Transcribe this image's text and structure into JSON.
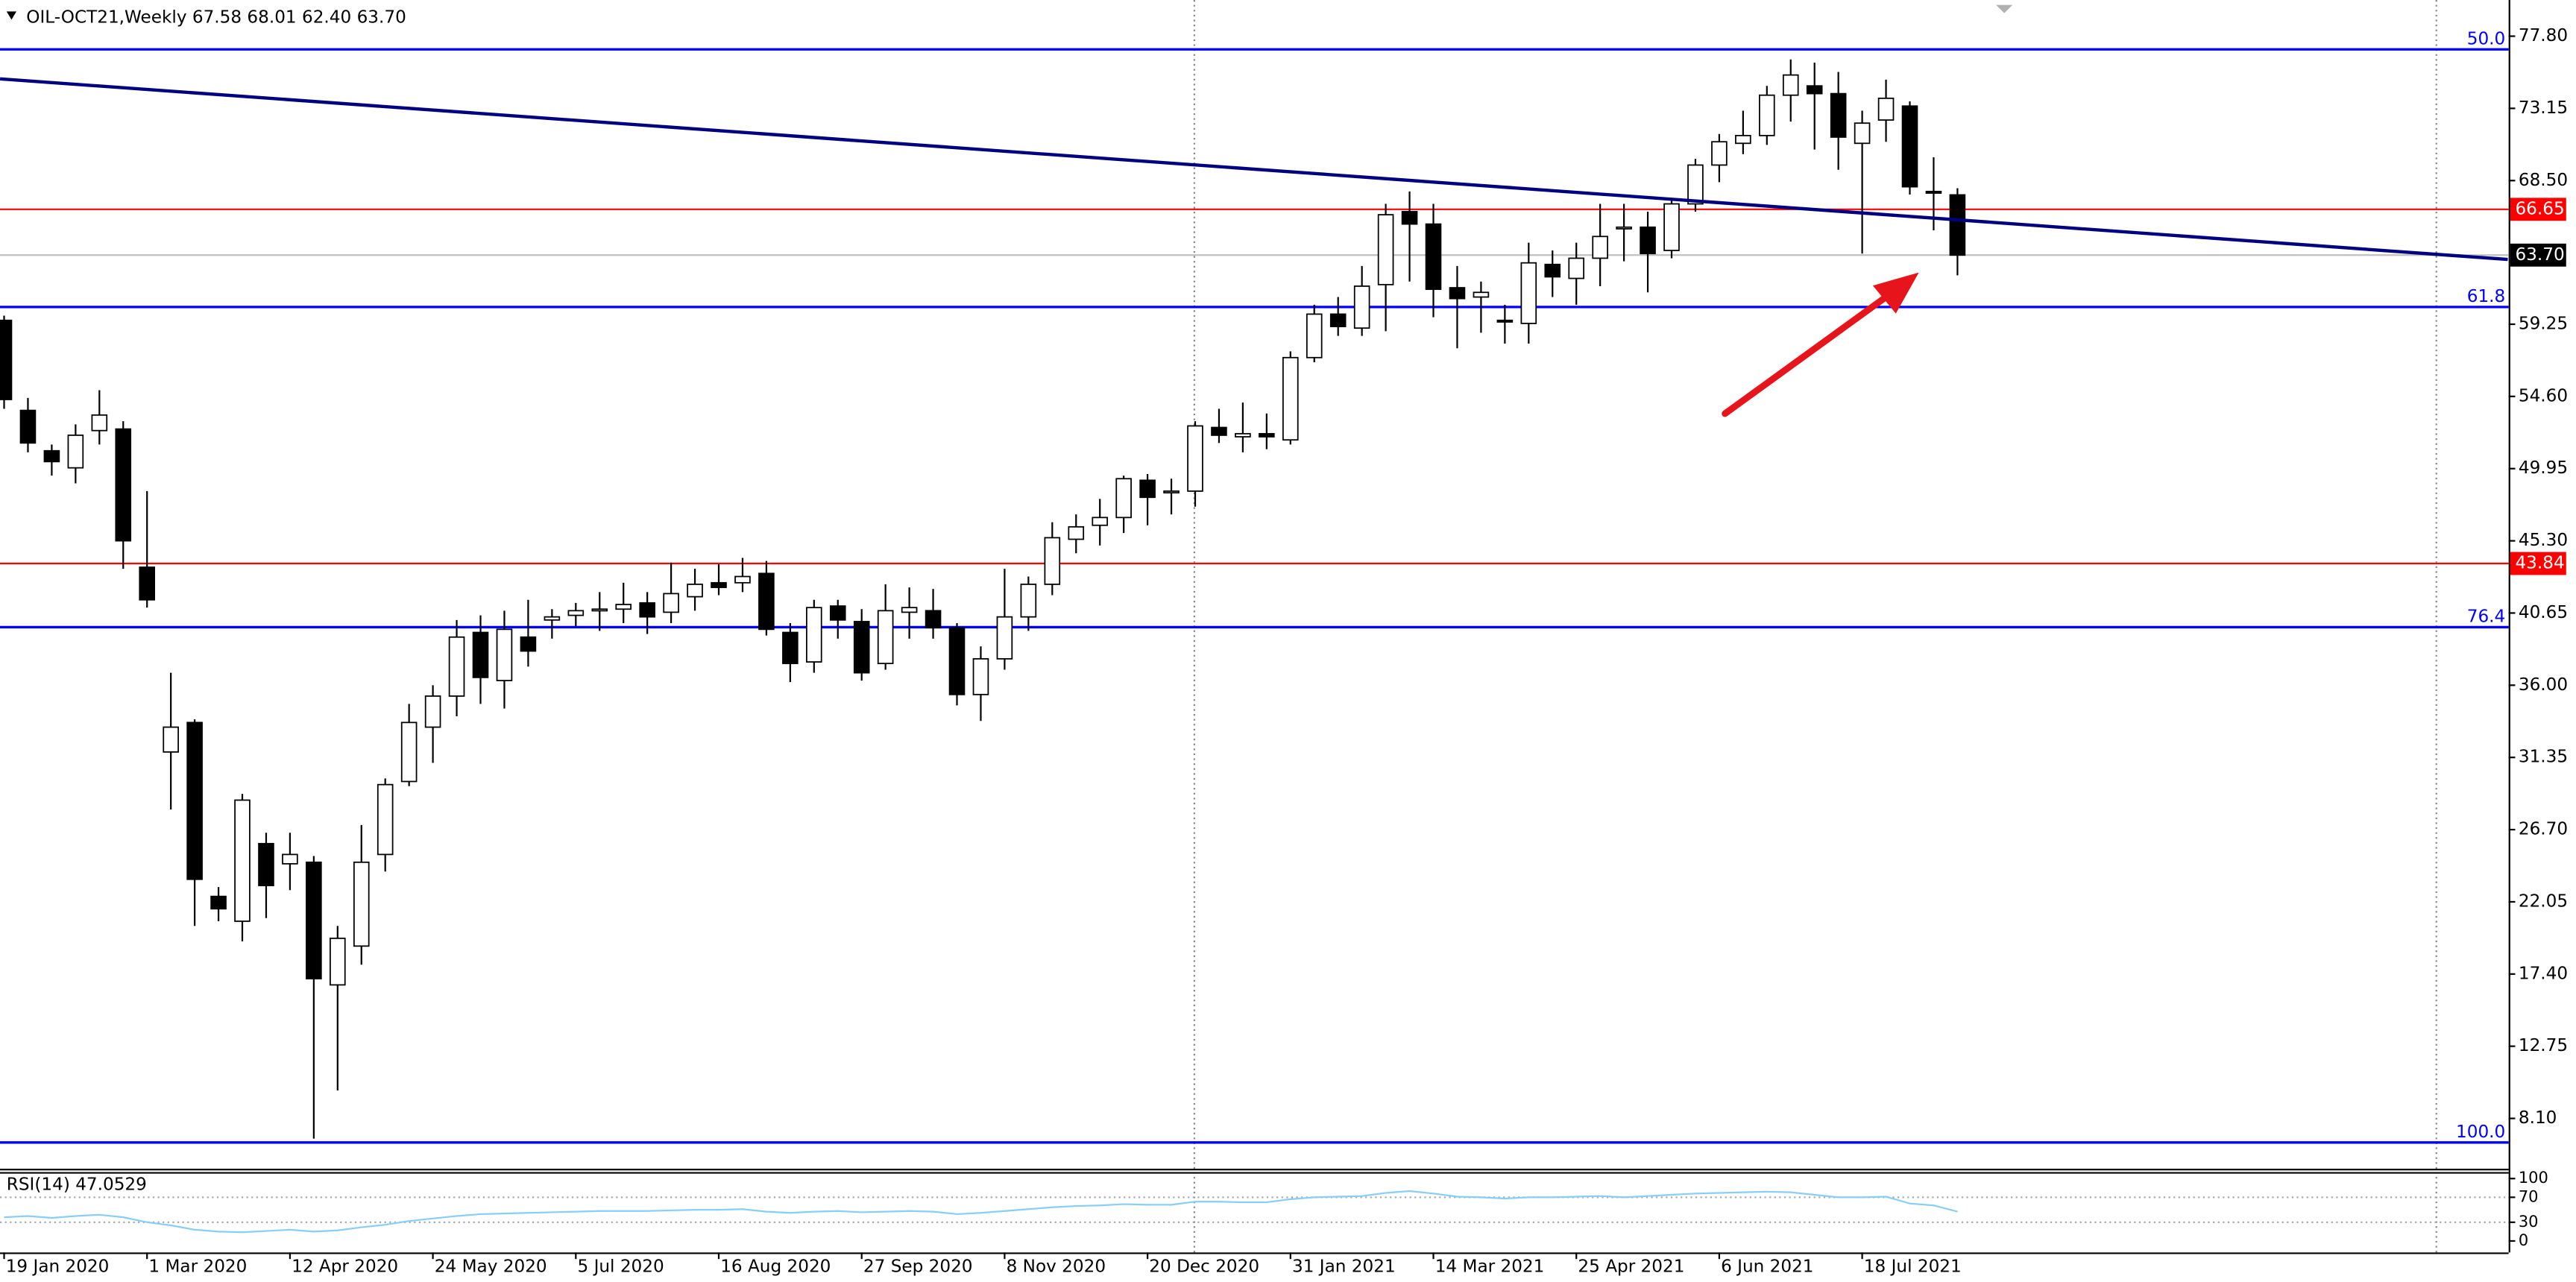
{
  "chart_data": [
    {
      "type": "candlestick",
      "title": "OIL-OCT21,Weekly  67.58 68.01 62.40 63.70",
      "categories": [
        "19 Jan 2020",
        null,
        null,
        null,
        null,
        null,
        "1 Mar 2020",
        null,
        null,
        null,
        null,
        null,
        "12 Apr 2020",
        null,
        null,
        null,
        null,
        null,
        "24 May 2020",
        null,
        null,
        null,
        null,
        null,
        "5 Jul 2020",
        null,
        null,
        null,
        null,
        null,
        "16 Aug 2020",
        null,
        null,
        null,
        null,
        null,
        "27 Sep 2020",
        null,
        null,
        null,
        null,
        null,
        "8 Nov 2020",
        null,
        null,
        null,
        null,
        null,
        "20 Dec 2020",
        null,
        null,
        null,
        null,
        null,
        "31 Jan 2021",
        null,
        null,
        null,
        null,
        null,
        "14 Mar 2021",
        null,
        null,
        null,
        null,
        null,
        "25 Apr 2021",
        null,
        null,
        null,
        null,
        null,
        "6 Jun 2021",
        null,
        null,
        null,
        null,
        null,
        "18 Jul 2021",
        null,
        null,
        null,
        null
      ],
      "open": [
        59.5,
        53.7,
        51.1,
        50.0,
        52.4,
        52.5,
        43.6,
        31.7,
        33.6,
        22.4,
        20.8,
        25.8,
        24.5,
        24.6,
        16.7,
        19.2,
        25.1,
        29.8,
        33.3,
        35.3,
        39.4,
        36.3,
        39.1,
        40.2,
        40.5,
        40.8,
        40.9,
        41.3,
        40.7,
        41.7,
        42.6,
        42.6,
        43.2,
        39.4,
        37.5,
        41.1,
        40.1,
        37.4,
        40.7,
        40.8,
        39.7,
        35.4,
        37.7,
        40.4,
        42.5,
        45.4,
        46.3,
        46.8,
        49.2,
        48.4,
        48.5,
        52.6,
        52.0,
        52.2,
        51.8,
        57.1,
        59.9,
        59.0,
        61.8,
        66.5,
        65.7,
        61.6,
        61.0,
        59.5,
        59.3,
        63.1,
        62.2,
        63.5,
        65.4,
        65.5,
        64.0,
        67.0,
        69.5,
        70.9,
        71.4,
        74.0,
        74.6,
        74.1,
        70.9,
        72.4,
        73.3,
        67.8,
        67.58
      ],
      "high": [
        59.8,
        54.5,
        51.5,
        52.8,
        55.0,
        53.0,
        48.5,
        36.8,
        33.8,
        23.0,
        29.0,
        26.5,
        26.5,
        25.0,
        20.5,
        27.0,
        30.0,
        34.8,
        36.0,
        40.2,
        40.5,
        40.8,
        41.5,
        40.9,
        41.3,
        42.0,
        42.6,
        42.0,
        43.9,
        43.5,
        43.8,
        44.2,
        44.0,
        40.0,
        41.5,
        41.5,
        40.9,
        42.5,
        42.3,
        42.2,
        40.0,
        38.5,
        43.5,
        43.0,
        46.5,
        47.0,
        48.0,
        49.5,
        49.6,
        49.3,
        53.0,
        53.8,
        54.2,
        53.5,
        57.5,
        60.5,
        61.0,
        63.0,
        67.0,
        67.8,
        67.0,
        63.0,
        62.0,
        60.5,
        64.5,
        64.0,
        64.5,
        67.0,
        67.0,
        66.5,
        67.3,
        69.9,
        71.5,
        73.0,
        74.6,
        76.3,
        76.1,
        75.5,
        73.0,
        75.0,
        73.6,
        70.0,
        68.01
      ],
      "low": [
        53.8,
        51.0,
        49.5,
        49.0,
        51.5,
        43.5,
        41.0,
        28.0,
        20.5,
        20.8,
        19.5,
        21.0,
        22.8,
        6.8,
        9.9,
        18.0,
        24.0,
        29.5,
        31.0,
        34.0,
        34.8,
        34.5,
        37.2,
        39.0,
        39.8,
        39.5,
        40.0,
        39.3,
        40.0,
        40.8,
        41.8,
        42.0,
        39.2,
        36.2,
        36.8,
        39.0,
        36.3,
        37.0,
        39.0,
        39.0,
        34.7,
        33.7,
        37.0,
        39.5,
        41.8,
        44.5,
        45.0,
        45.8,
        46.3,
        47.0,
        47.5,
        51.6,
        51.0,
        51.2,
        51.5,
        56.8,
        58.5,
        58.5,
        58.8,
        62.0,
        59.7,
        57.7,
        58.7,
        58.0,
        58.0,
        61.0,
        60.5,
        61.7,
        63.3,
        61.3,
        63.5,
        66.5,
        68.4,
        70.2,
        70.8,
        72.3,
        70.5,
        69.2,
        63.8,
        71.0,
        67.6,
        65.3,
        62.4
      ],
      "close": [
        54.4,
        51.6,
        50.4,
        52.1,
        53.4,
        45.3,
        41.5,
        33.3,
        23.5,
        21.6,
        28.6,
        23.1,
        25.1,
        17.1,
        19.7,
        24.6,
        29.6,
        33.6,
        35.3,
        39.1,
        36.5,
        39.6,
        38.2,
        40.4,
        40.8,
        40.9,
        41.2,
        40.4,
        41.9,
        42.5,
        42.3,
        43.0,
        39.6,
        37.4,
        41.0,
        40.2,
        36.8,
        40.8,
        41.0,
        39.7,
        35.4,
        37.7,
        40.4,
        42.5,
        45.5,
        46.2,
        46.8,
        49.3,
        48.1,
        48.5,
        52.7,
        52.1,
        52.2,
        52.0,
        57.1,
        59.9,
        59.1,
        61.7,
        66.3,
        65.7,
        61.5,
        60.9,
        61.3,
        59.4,
        63.2,
        62.3,
        63.5,
        64.9,
        65.5,
        63.8,
        67.0,
        69.5,
        71.0,
        71.4,
        74.0,
        75.3,
        74.1,
        71.3,
        72.2,
        73.8,
        68.1,
        67.7,
        63.7
      ],
      "bull_color": "#ffffff",
      "bear_color": "#000000",
      "outline_color": "#000000",
      "ylim": [
        4.86,
        80.13
      ],
      "yticks": [
        {
          "value": 77.8,
          "label": "77.80"
        },
        {
          "value": 73.15,
          "label": "73.15"
        },
        {
          "value": 68.5,
          "label": "68.50"
        },
        {
          "value": 59.25,
          "label": "59.25"
        },
        {
          "value": 54.6,
          "label": "54.60"
        },
        {
          "value": 49.95,
          "label": "49.95"
        },
        {
          "value": 45.3,
          "label": "45.30"
        },
        {
          "value": 40.65,
          "label": "40.65"
        },
        {
          "value": 36.0,
          "label": "36.00"
        },
        {
          "value": 31.35,
          "label": "31.35"
        },
        {
          "value": 26.7,
          "label": "26.70"
        },
        {
          "value": 22.05,
          "label": "22.05"
        },
        {
          "value": 17.4,
          "label": "17.40"
        },
        {
          "value": 12.75,
          "label": "12.75"
        },
        {
          "value": 8.1,
          "label": "8.10"
        }
      ],
      "price_lines": [
        {
          "value": 66.65,
          "label": "66.65",
          "color": "#ff0000"
        },
        {
          "value": 43.84,
          "label": "43.84",
          "color": "#ff0000"
        }
      ],
      "current_price": {
        "value": 63.7,
        "label": "63.70"
      },
      "fib_color": "#0000ff",
      "fib_levels": [
        {
          "value": 76.95,
          "label": "50.0"
        },
        {
          "value": 60.36,
          "label": "61.8"
        },
        {
          "value": 39.74,
          "label": "76.4"
        },
        {
          "value": 6.55,
          "label": "100.0"
        }
      ],
      "trendline": {
        "x": [
          -0.17,
          105.1
        ],
        "y": [
          75.05,
          63.42
        ],
        "color": "#000080"
      }
    },
    {
      "type": "line",
      "title": "RSI(14) 47.0529",
      "color": "#87cefa",
      "values": [
        38,
        40,
        37,
        40,
        42,
        38,
        30,
        25,
        18,
        15,
        14,
        16,
        18,
        15,
        17,
        22,
        26,
        32,
        36,
        40,
        43,
        44,
        45,
        46,
        47,
        48,
        48,
        48,
        49,
        50,
        50,
        51,
        47,
        45,
        47,
        48,
        46,
        47,
        48,
        47,
        43,
        45,
        48,
        51,
        54,
        56,
        57,
        59,
        58,
        58,
        63,
        63,
        62,
        62,
        67,
        70,
        71,
        72,
        77,
        80,
        76,
        71,
        70,
        68,
        70,
        70,
        71,
        72,
        70,
        72,
        74,
        76,
        77,
        78,
        79,
        78,
        74,
        70,
        70,
        71,
        60,
        57,
        47.05
      ],
      "ylim": [
        -18.4,
        110.5
      ],
      "yticks": [
        100,
        70,
        30,
        0
      ]
    }
  ]
}
